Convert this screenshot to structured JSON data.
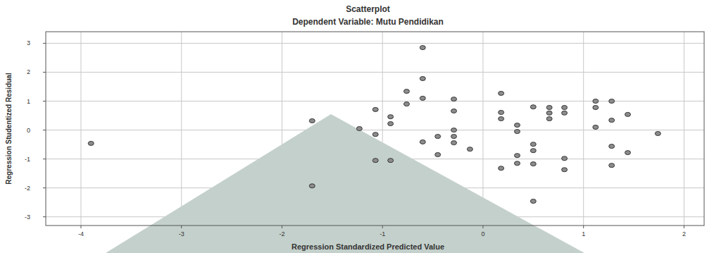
{
  "chart_data": {
    "type": "scatter",
    "title": "Scatterplot",
    "subtitle": "Dependent Variable: Mutu Pendidikan",
    "x_label": "Regression Standardized Predicted Value",
    "y_label": "Regression Studentized Residual",
    "x": [
      -3.9,
      -1.7,
      -1.7,
      -1.23,
      -1.07,
      -1.07,
      -1.07,
      -0.92,
      -0.92,
      -0.92,
      -0.76,
      -0.76,
      -0.6,
      -0.6,
      -0.6,
      -0.6,
      -0.45,
      -0.45,
      -0.29,
      -0.29,
      -0.29,
      -0.29,
      -0.29,
      -0.13,
      0.18,
      0.18,
      0.18,
      0.18,
      0.34,
      0.34,
      0.34,
      0.34,
      0.5,
      0.5,
      0.5,
      0.5,
      0.5,
      0.66,
      0.66,
      0.66,
      0.81,
      0.81,
      0.81,
      0.81,
      1.12,
      1.12,
      1.12,
      1.28,
      1.28,
      1.28,
      1.28,
      1.44,
      1.44,
      1.74
    ],
    "values": [
      -0.46,
      0.32,
      -1.93,
      0.05,
      0.71,
      -0.15,
      -1.05,
      0.46,
      0.22,
      -1.05,
      1.34,
      0.9,
      2.85,
      1.78,
      1.1,
      -0.41,
      -0.22,
      -0.85,
      1.07,
      0.66,
      0.0,
      -0.22,
      -0.44,
      -0.66,
      1.27,
      0.61,
      0.39,
      -1.32,
      0.17,
      -0.05,
      -0.88,
      -1.15,
      0.8,
      -0.49,
      -0.71,
      -1.17,
      -2.46,
      0.78,
      0.59,
      0.39,
      0.78,
      0.59,
      -0.98,
      -1.37,
      1.0,
      0.78,
      0.1,
      1.0,
      0.34,
      -0.56,
      -1.22,
      0.54,
      -0.78,
      -0.12
    ],
    "xlim": [
      -4.35,
      2.2
    ],
    "xticks": [
      -4,
      -3,
      -2,
      -1,
      0,
      1,
      2
    ],
    "ylim": [
      -3.3,
      3.4
    ],
    "yticks": [
      -3,
      -2,
      -1,
      0,
      1,
      2,
      3
    ],
    "grid": true,
    "color": "#8c8c8c",
    "marker": "circle"
  }
}
